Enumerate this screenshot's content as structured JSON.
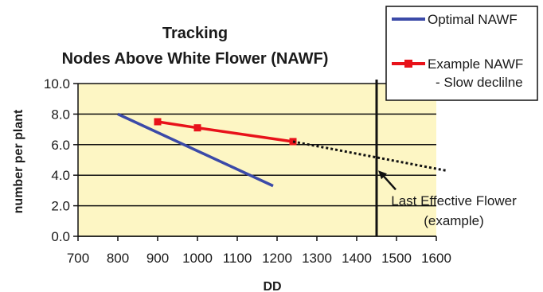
{
  "chart_data": {
    "type": "line",
    "title_lines": [
      "Tracking",
      "Nodes Above White Flower (NAWF)"
    ],
    "xlabel": "DD",
    "ylabel": "number per plant",
    "xlim": [
      700,
      1600
    ],
    "ylim": [
      0,
      10
    ],
    "x_ticks": [
      "700",
      "800",
      "900",
      "1000",
      "1100",
      "1200",
      "1300",
      "1400",
      "1500",
      "1600"
    ],
    "y_ticks": [
      "0.0",
      "2.0",
      "4.0",
      "6.0",
      "8.0",
      "10.0"
    ],
    "grid": "horizontal",
    "legend_position": "top-right, outside plot",
    "plot_background": "#fdf6c4",
    "series": [
      {
        "name": "Optimal NAWF",
        "color": "#3b4aa8",
        "marker": "none",
        "x": [
          800,
          1190
        ],
        "y": [
          8.0,
          3.3
        ]
      },
      {
        "name": "Example NAWF - Slow decline",
        "legend_lines": [
          "Example NAWF",
          "- Slow declilne"
        ],
        "color": "#e8121a",
        "marker": "square",
        "x": [
          900,
          1000,
          1240
        ],
        "y": [
          7.5,
          7.1,
          6.2
        ]
      },
      {
        "name": "",
        "color": "#111111",
        "style": "dotted",
        "x": [
          1240,
          1625
        ],
        "y": [
          6.2,
          4.3
        ]
      }
    ],
    "reference_line": {
      "x": 1450,
      "color": "#111111"
    },
    "annotation": {
      "lines": [
        "Last Effective Flower",
        "(example)"
      ],
      "arrow_to": {
        "x": 1450,
        "y": 4.1
      }
    }
  }
}
